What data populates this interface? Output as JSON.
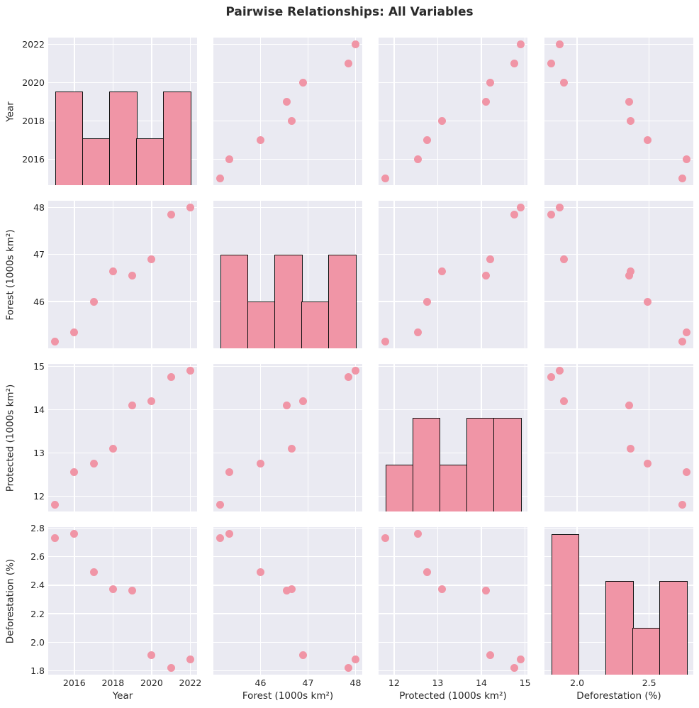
{
  "chart_data": {
    "type": "scatter",
    "subtype": "pairplot-matrix",
    "title": "Pairwise Relationships: All Variables",
    "legend": "none",
    "grid": true,
    "colors": {
      "plot_bg": "#eaeaf2",
      "grid": "#ffffff",
      "marker": "#f095a6",
      "hist_fill": "#f095a6",
      "hist_edge": "#111111",
      "text": "#262626",
      "title_text": "#2b2b2b"
    },
    "marker_diameter_px": 11,
    "hist_count_ylim": [
      0,
      3.15
    ],
    "variables": [
      {
        "key": "year",
        "label": "Year",
        "axis_range": [
          2014.65,
          2022.35
        ],
        "ticks": [
          {
            "v": 2016,
            "t": "2016"
          },
          {
            "v": 2018,
            "t": "2018"
          },
          {
            "v": 2020,
            "t": "2020"
          },
          {
            "v": 2022,
            "t": "2022"
          }
        ]
      },
      {
        "key": "forest",
        "label": "Forest (1000s km²)",
        "axis_range": [
          45.0075,
          48.1425
        ],
        "ticks": [
          {
            "v": 46,
            "t": "46"
          },
          {
            "v": 47,
            "t": "47"
          },
          {
            "v": 48,
            "t": "48"
          }
        ]
      },
      {
        "key": "protected",
        "label": "Protected (1000s km²)",
        "axis_range": [
          11.645,
          15.055
        ],
        "ticks": [
          {
            "v": 12,
            "t": "12"
          },
          {
            "v": 13,
            "t": "13"
          },
          {
            "v": 14,
            "t": "14"
          },
          {
            "v": 15,
            "t": "15"
          }
        ]
      },
      {
        "key": "deforestation",
        "label": "Deforestation (%)",
        "axis_range": [
          1.773,
          2.807
        ],
        "ticks": [
          {
            "v": 1.8,
            "t": "1.8"
          },
          {
            "v": 2.0,
            "t": "2.0"
          },
          {
            "v": 2.2,
            "t": "2.2"
          },
          {
            "v": 2.4,
            "t": "2.4"
          },
          {
            "v": 2.6,
            "t": "2.6"
          },
          {
            "v": 2.8,
            "t": "2.8"
          }
        ],
        "xticks": [
          {
            "v": 2.0,
            "t": "2.0"
          },
          {
            "v": 2.5,
            "t": "2.5"
          }
        ]
      }
    ],
    "records": [
      {
        "year": 2015,
        "forest": 45.15,
        "protected": 11.8,
        "deforestation": 2.73
      },
      {
        "year": 2016,
        "forest": 45.35,
        "protected": 12.55,
        "deforestation": 2.76
      },
      {
        "year": 2017,
        "forest": 46.0,
        "protected": 12.75,
        "deforestation": 2.49
      },
      {
        "year": 2018,
        "forest": 46.65,
        "protected": 13.1,
        "deforestation": 2.37
      },
      {
        "year": 2019,
        "forest": 46.55,
        "protected": 14.1,
        "deforestation": 2.36
      },
      {
        "year": 2020,
        "forest": 46.9,
        "protected": 14.2,
        "deforestation": 1.91
      },
      {
        "year": 2021,
        "forest": 47.85,
        "protected": 14.75,
        "deforestation": 1.82
      },
      {
        "year": 2022,
        "forest": 48.0,
        "protected": 14.9,
        "deforestation": 1.88
      }
    ],
    "histograms": {
      "year": {
        "edges": [
          2015,
          2016.4,
          2017.8,
          2019.2,
          2020.6,
          2022
        ],
        "counts": [
          2,
          1,
          2,
          1,
          2
        ]
      },
      "forest": {
        "edges": [
          45.15,
          45.72,
          46.29,
          46.86,
          47.43,
          48.0
        ],
        "counts": [
          2,
          1,
          2,
          1,
          2
        ]
      },
      "protected": {
        "edges": [
          11.8,
          12.42,
          13.04,
          13.66,
          14.28,
          14.9
        ],
        "counts": [
          1,
          2,
          1,
          2,
          2
        ]
      },
      "deforestation": {
        "edges": [
          1.82,
          2.008,
          2.196,
          2.384,
          2.572,
          2.76
        ],
        "counts": [
          3,
          0,
          2,
          1,
          2
        ]
      }
    }
  }
}
